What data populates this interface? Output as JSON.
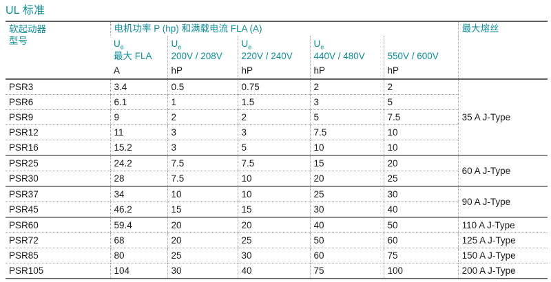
{
  "page": {
    "title": "UL 标准"
  },
  "colors": {
    "accent_teal": "#0d8d96",
    "body_text": "#1a1a1a",
    "heavy_line": "#606060",
    "group_line": "#8c8c8c",
    "dotted_line": "#9e9e9e"
  },
  "table": {
    "header": {
      "model_line1": "软起动器",
      "model_line2": "型号",
      "power_group": "电机功率 P (hp) 和满载电流 FLA (A)",
      "fuse": "最大熔丝",
      "subcols": [
        {
          "u_symbol": "U",
          "u_sub": "e",
          "label": "最大 FLA",
          "unit": "A"
        },
        {
          "u_symbol": "U",
          "u_sub": "e",
          "label": "200V / 208V",
          "unit": "hP"
        },
        {
          "u_symbol": "U",
          "u_sub": "e",
          "label": "220V / 240V",
          "unit": "hP"
        },
        {
          "u_symbol": "U",
          "u_sub": "e",
          "label": "440V / 480V",
          "unit": "hP"
        },
        {
          "u_symbol": "",
          "u_sub": "",
          "label": "550V / 600V",
          "unit": "hP"
        }
      ]
    },
    "rows": [
      {
        "model": "PSR3",
        "values": [
          "3.4",
          "0.5",
          "0.75",
          "2",
          "2"
        ],
        "fuse": "35 A J-Type",
        "fuse_rowspan": 5
      },
      {
        "model": "PSR6",
        "values": [
          "6.1",
          "1",
          "1.5",
          "3",
          "5"
        ]
      },
      {
        "model": "PSR9",
        "values": [
          "9",
          "2",
          "2",
          "5",
          "7.5"
        ]
      },
      {
        "model": "PSR12",
        "values": [
          "11",
          "3",
          "3",
          "7.5",
          "10"
        ]
      },
      {
        "model": "PSR16",
        "values": [
          "15.2",
          "3",
          "5",
          "10",
          "10"
        ]
      },
      {
        "model": "PSR25",
        "values": [
          "24.2",
          "7.5",
          "7.5",
          "15",
          "20"
        ],
        "fuse": "60 A J-Type",
        "fuse_rowspan": 2,
        "solid_top": true
      },
      {
        "model": "PSR30",
        "values": [
          "28",
          "7.5",
          "10",
          "20",
          "25"
        ]
      },
      {
        "model": "PSR37",
        "values": [
          "34",
          "10",
          "10",
          "25",
          "30"
        ],
        "fuse": "90 A J-Type",
        "fuse_rowspan": 2,
        "solid_top": true
      },
      {
        "model": "PSR45",
        "values": [
          "46.2",
          "15",
          "15",
          "30",
          "40"
        ]
      },
      {
        "model": "PSR60",
        "values": [
          "59.4",
          "20",
          "20",
          "40",
          "50"
        ],
        "fuse": "110 A J-Type",
        "fuse_rowspan": 1,
        "solid_top": true
      },
      {
        "model": "PSR72",
        "values": [
          "68",
          "20",
          "25",
          "50",
          "60"
        ],
        "fuse": "125 A J-Type",
        "fuse_rowspan": 1
      },
      {
        "model": "PSR85",
        "values": [
          "80",
          "25",
          "30",
          "60",
          "75"
        ],
        "fuse": "150 A J-Type",
        "fuse_rowspan": 1
      },
      {
        "model": "PSR105",
        "values": [
          "104",
          "30",
          "40",
          "75",
          "100"
        ],
        "fuse": "200 A J-Type",
        "fuse_rowspan": 1
      }
    ]
  }
}
